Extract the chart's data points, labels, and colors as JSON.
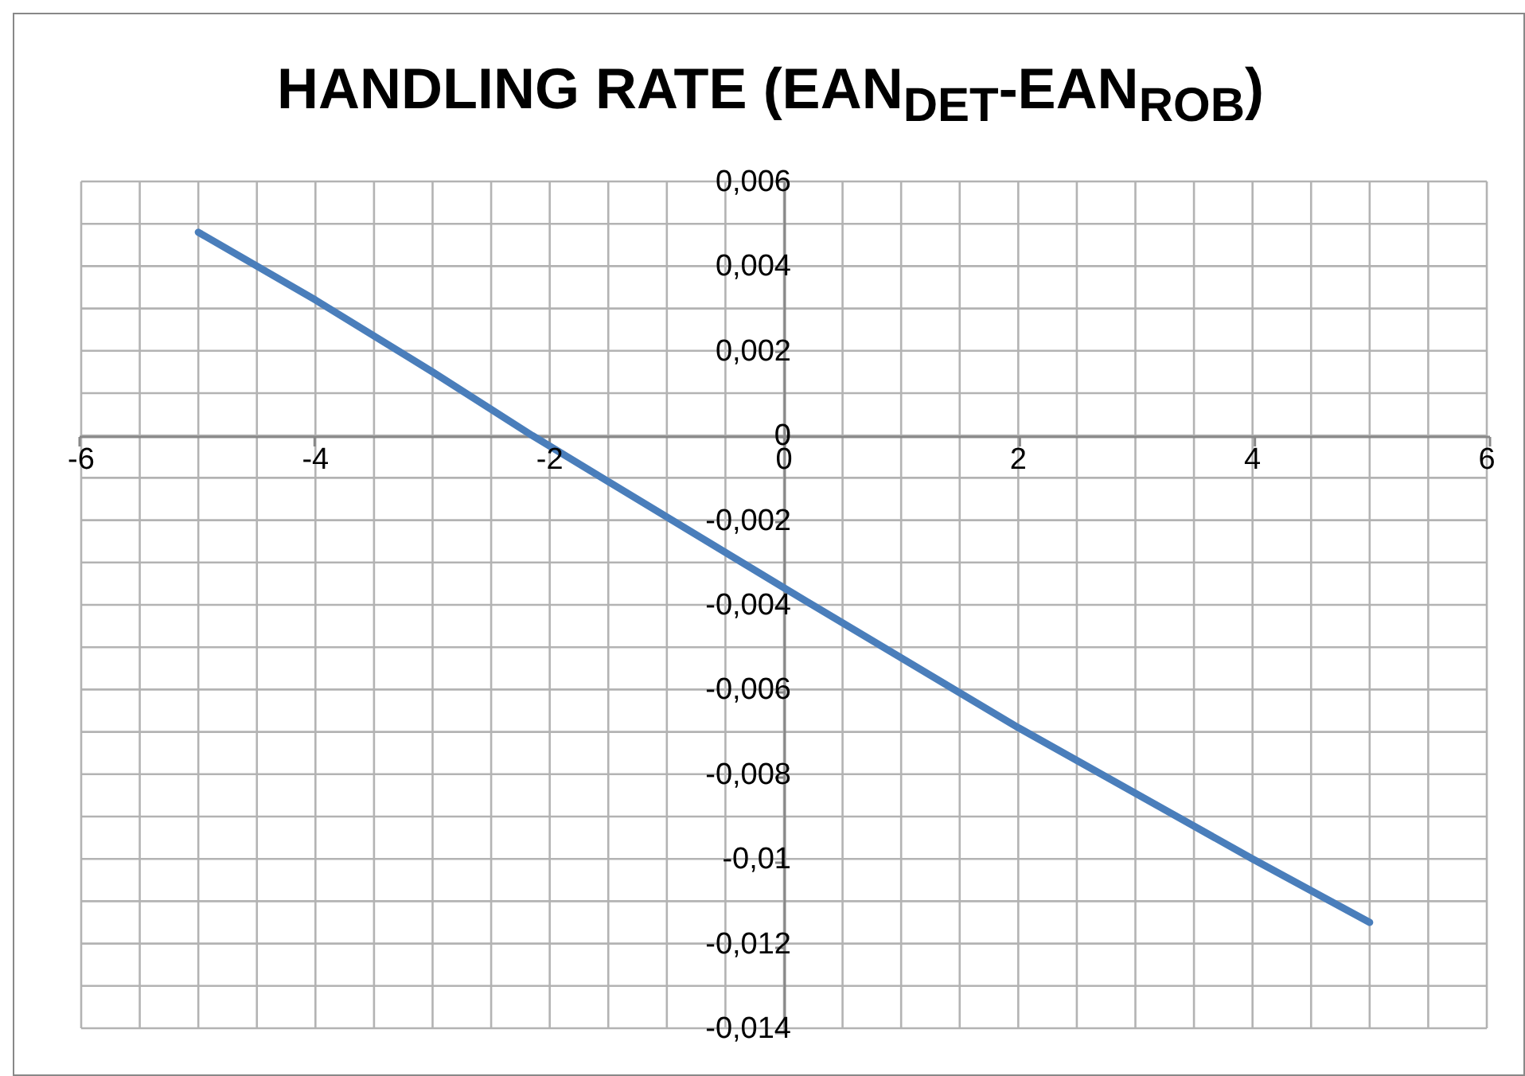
{
  "chart_data": {
    "type": "line",
    "title": "HANDLING RATE (EAN$_{DET}$-EAN$_{ROB}$)",
    "series": [
      {
        "color": "#4a7ebb",
        "x": [
          -5,
          -4,
          -3,
          -2.15,
          0,
          2,
          4,
          5
        ],
        "values": [
          0.0048,
          0.0032,
          0.0015,
          0,
          -0.0036,
          -0.0069,
          -0.01,
          -0.0115
        ]
      }
    ],
    "xlim": [
      -6,
      6
    ],
    "xticks": [
      -6,
      -4,
      -2,
      0,
      2,
      4,
      6
    ],
    "ylim": [
      -0.014,
      0.006
    ],
    "yticks": [
      {
        "value": -0.014,
        "label": "-0,014"
      },
      {
        "value": -0.012,
        "label": "-0,012"
      },
      {
        "value": -0.01,
        "label": "-0,01"
      },
      {
        "value": -0.008,
        "label": "-0,008"
      },
      {
        "value": -0.006,
        "label": "-0,006"
      },
      {
        "value": -0.004,
        "label": "-0,004"
      },
      {
        "value": -0.002,
        "label": "-0,002"
      },
      {
        "value": 0,
        "label": "0"
      },
      {
        "value": 0.002,
        "label": "0,002"
      },
      {
        "value": 0.004,
        "label": "0,004"
      },
      {
        "value": 0.006,
        "label": "0,006"
      }
    ],
    "grid": true,
    "marker": "none",
    "line_style": "solid"
  }
}
